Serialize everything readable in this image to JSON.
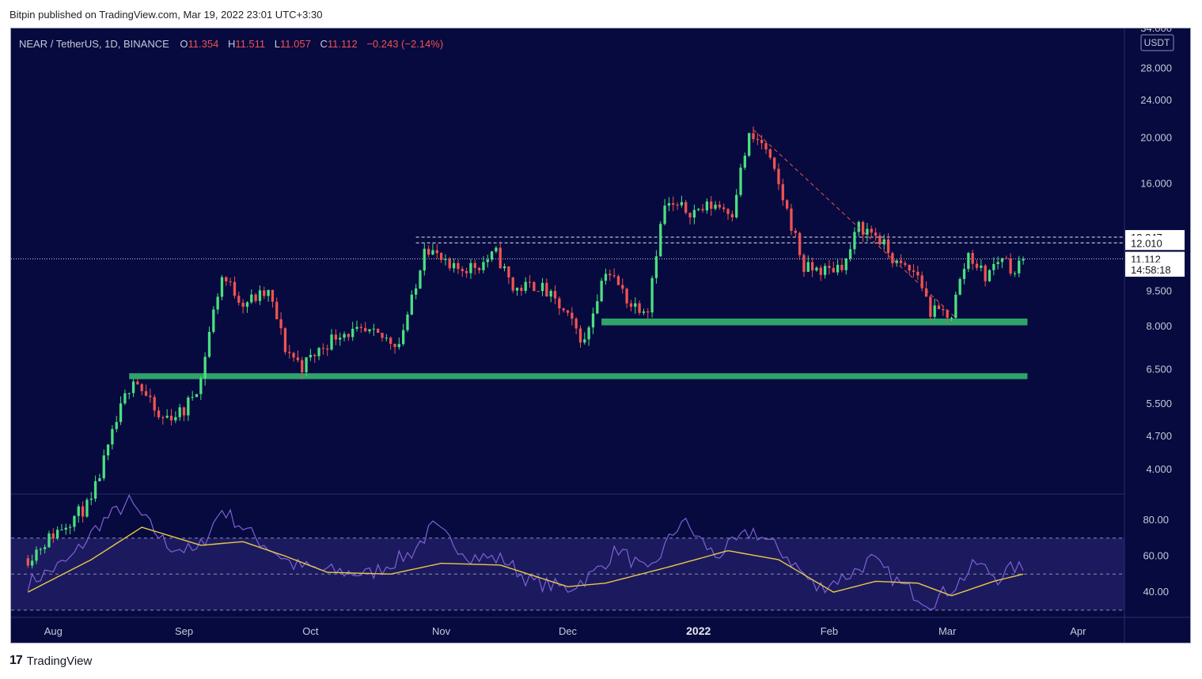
{
  "header": {
    "text": "Bitpin published on TradingView.com, Mar 19, 2022 23:01 UTC+3:30"
  },
  "footer": {
    "logo_mark": "17",
    "brand": "TradingView",
    "logo_icon": "tradingview-logo-icon"
  },
  "legend": {
    "symbol": "NEAR / TetherUS, 1D, BINANCE",
    "o_label": "O",
    "o_value": "11.354",
    "h_label": "H",
    "h_value": "11.511",
    "l_label": "L",
    "l_value": "11.057",
    "c_label": "C",
    "c_value": "11.112",
    "change": "−0.243 (−2.14%)"
  },
  "colors": {
    "background": "#070a3f",
    "up": "#4ae07f",
    "down": "#ef5350",
    "support_zone": "#2ea36a",
    "rsi": "#7e62d6",
    "rsi_ma": "#e8c84a",
    "rsi_band": "#1c1a5e",
    "text": "#c5c8d6",
    "legend_values": "#ef5350"
  },
  "chart_data": [
    {
      "type": "candlestick",
      "title": "NEAR / TetherUS, 1D, BINANCE",
      "y_scale": "log",
      "y_currency": "USDT",
      "ylim": [
        3.55,
        34.0
      ],
      "x_range": [
        "2021-07-22",
        "2022-04-12"
      ],
      "y_ticks": [
        "34.000",
        "28.000",
        "24.000",
        "20.000",
        "16.000",
        "12.000",
        "9.500",
        "8.000",
        "6.500",
        "5.500",
        "4.700",
        "4.000"
      ],
      "y_tick_values": [
        34.0,
        28.0,
        24.0,
        20.0,
        16.0,
        12.0,
        9.5,
        8.0,
        6.5,
        5.5,
        4.7,
        4.0
      ],
      "x_ticks": [
        "Aug",
        "Sep",
        "Oct",
        "Nov",
        "Dec",
        "2022",
        "Feb",
        "Mar",
        "Apr"
      ],
      "x_tick_dates": [
        "2021-08-01",
        "2021-09-01",
        "2021-10-01",
        "2021-11-01",
        "2021-12-01",
        "2022-01-01",
        "2022-02-01",
        "2022-03-01",
        "2022-04-01"
      ],
      "price_labels": [
        {
          "text": "12.347",
          "value": 12.347,
          "style": "white"
        },
        {
          "text": "12.010",
          "value": 12.01,
          "style": "white"
        },
        {
          "text": "11.112",
          "value": 11.112,
          "style": "white"
        },
        {
          "text": "14:58:18",
          "value": 10.55,
          "style": "white"
        }
      ],
      "dashed_levels": [
        12.347,
        12.01
      ],
      "last_price_line": 11.112,
      "support_zones": [
        {
          "from": "2021-08-19",
          "to": "2022-03-20",
          "low": 6.2,
          "high": 6.38
        },
        {
          "from": "2021-12-09",
          "to": "2022-03-20",
          "low": 8.05,
          "high": 8.32
        }
      ],
      "trendline": {
        "from": [
          "2022-01-14",
          20.8
        ],
        "to": [
          "2022-03-03",
          8.35
        ]
      },
      "anchors": [
        [
          "2021-07-26",
          2.6
        ],
        [
          "2021-08-10",
          3.4
        ],
        [
          "2021-08-14",
          4.4
        ],
        [
          "2021-08-20",
          6.3
        ],
        [
          "2021-08-26",
          5.1
        ],
        [
          "2021-09-01",
          5.3
        ],
        [
          "2021-09-05",
          6.2
        ],
        [
          "2021-09-10",
          10.2
        ],
        [
          "2021-09-15",
          9.0
        ],
        [
          "2021-09-21",
          9.4
        ],
        [
          "2021-09-25",
          7.2
        ],
        [
          "2021-09-29",
          6.6
        ],
        [
          "2021-10-08",
          7.8
        ],
        [
          "2021-10-15",
          7.7
        ],
        [
          "2021-10-22",
          7.4
        ],
        [
          "2021-10-26",
          9.6
        ],
        [
          "2021-10-28",
          12.0
        ],
        [
          "2021-11-03",
          10.5
        ],
        [
          "2021-11-10",
          10.8
        ],
        [
          "2021-11-14",
          11.4
        ],
        [
          "2021-11-18",
          9.6
        ],
        [
          "2021-11-24",
          9.8
        ],
        [
          "2021-11-29",
          8.8
        ],
        [
          "2021-12-05",
          7.4
        ],
        [
          "2021-12-10",
          10.6
        ],
        [
          "2021-12-16",
          8.9
        ],
        [
          "2021-12-20",
          8.8
        ],
        [
          "2021-12-24",
          14.4
        ],
        [
          "2021-12-31",
          14.0
        ],
        [
          "2022-01-05",
          14.5
        ],
        [
          "2022-01-09",
          14.0
        ],
        [
          "2022-01-13",
          20.0
        ],
        [
          "2022-01-16",
          19.5
        ],
        [
          "2022-01-22",
          14.0
        ],
        [
          "2022-01-26",
          10.6
        ],
        [
          "2022-02-01",
          10.5
        ],
        [
          "2022-02-05",
          11.0
        ],
        [
          "2022-02-08",
          13.0
        ],
        [
          "2022-02-12",
          12.5
        ],
        [
          "2022-02-17",
          10.8
        ],
        [
          "2022-02-22",
          10.3
        ],
        [
          "2022-02-25",
          8.6
        ],
        [
          "2022-03-02",
          8.5
        ],
        [
          "2022-03-06",
          11.4
        ],
        [
          "2022-03-10",
          10.2
        ],
        [
          "2022-03-14",
          11.3
        ],
        [
          "2022-03-17",
          10.4
        ],
        [
          "2022-03-19",
          11.11
        ]
      ]
    },
    {
      "type": "line",
      "title": "RSI",
      "ylim": [
        26.0,
        94.0
      ],
      "y_ticks": [
        "80.00",
        "60.00",
        "40.00"
      ],
      "y_tick_values": [
        80,
        60,
        40
      ],
      "band": [
        30,
        70
      ],
      "midline": 50,
      "series": [
        {
          "role": "rsi",
          "anchors": [
            [
              "2021-07-26",
              45
            ],
            [
              "2021-08-05",
              58
            ],
            [
              "2021-08-12",
              78
            ],
            [
              "2021-08-19",
              90
            ],
            [
              "2021-08-28",
              66
            ],
            [
              "2021-09-04",
              62
            ],
            [
              "2021-09-10",
              86
            ],
            [
              "2021-09-18",
              70
            ],
            [
              "2021-09-27",
              55
            ],
            [
              "2021-10-04",
              52
            ],
            [
              "2021-10-15",
              50
            ],
            [
              "2021-10-25",
              62
            ],
            [
              "2021-10-30",
              76
            ],
            [
              "2021-11-08",
              60
            ],
            [
              "2021-11-16",
              58
            ],
            [
              "2021-11-22",
              46
            ],
            [
              "2021-12-01",
              42
            ],
            [
              "2021-12-07",
              50
            ],
            [
              "2021-12-13",
              64
            ],
            [
              "2021-12-20",
              50
            ],
            [
              "2021-12-28",
              80
            ],
            [
              "2022-01-05",
              60
            ],
            [
              "2022-01-14",
              74
            ],
            [
              "2022-01-22",
              60
            ],
            [
              "2022-01-29",
              42
            ],
            [
              "2022-02-06",
              50
            ],
            [
              "2022-02-11",
              58
            ],
            [
              "2022-02-18",
              44
            ],
            [
              "2022-02-25",
              34
            ],
            [
              "2022-03-03",
              44
            ],
            [
              "2022-03-08",
              56
            ],
            [
              "2022-03-13",
              48
            ],
            [
              "2022-03-17",
              54
            ],
            [
              "2022-03-19",
              52
            ]
          ]
        },
        {
          "role": "rsi-ma",
          "anchors": [
            [
              "2021-07-26",
              40
            ],
            [
              "2021-08-10",
              58
            ],
            [
              "2021-08-22",
              76
            ],
            [
              "2021-09-05",
              66
            ],
            [
              "2021-09-15",
              68
            ],
            [
              "2021-09-25",
              60
            ],
            [
              "2021-10-05",
              51
            ],
            [
              "2021-10-20",
              50
            ],
            [
              "2021-11-01",
              56
            ],
            [
              "2021-11-15",
              55
            ],
            [
              "2021-12-01",
              43
            ],
            [
              "2021-12-10",
              45
            ],
            [
              "2021-12-25",
              54
            ],
            [
              "2022-01-08",
              63
            ],
            [
              "2022-01-20",
              58
            ],
            [
              "2022-02-02",
              40
            ],
            [
              "2022-02-12",
              46
            ],
            [
              "2022-02-22",
              45
            ],
            [
              "2022-03-02",
              38
            ],
            [
              "2022-03-12",
              46
            ],
            [
              "2022-03-19",
              50
            ]
          ]
        }
      ]
    }
  ]
}
